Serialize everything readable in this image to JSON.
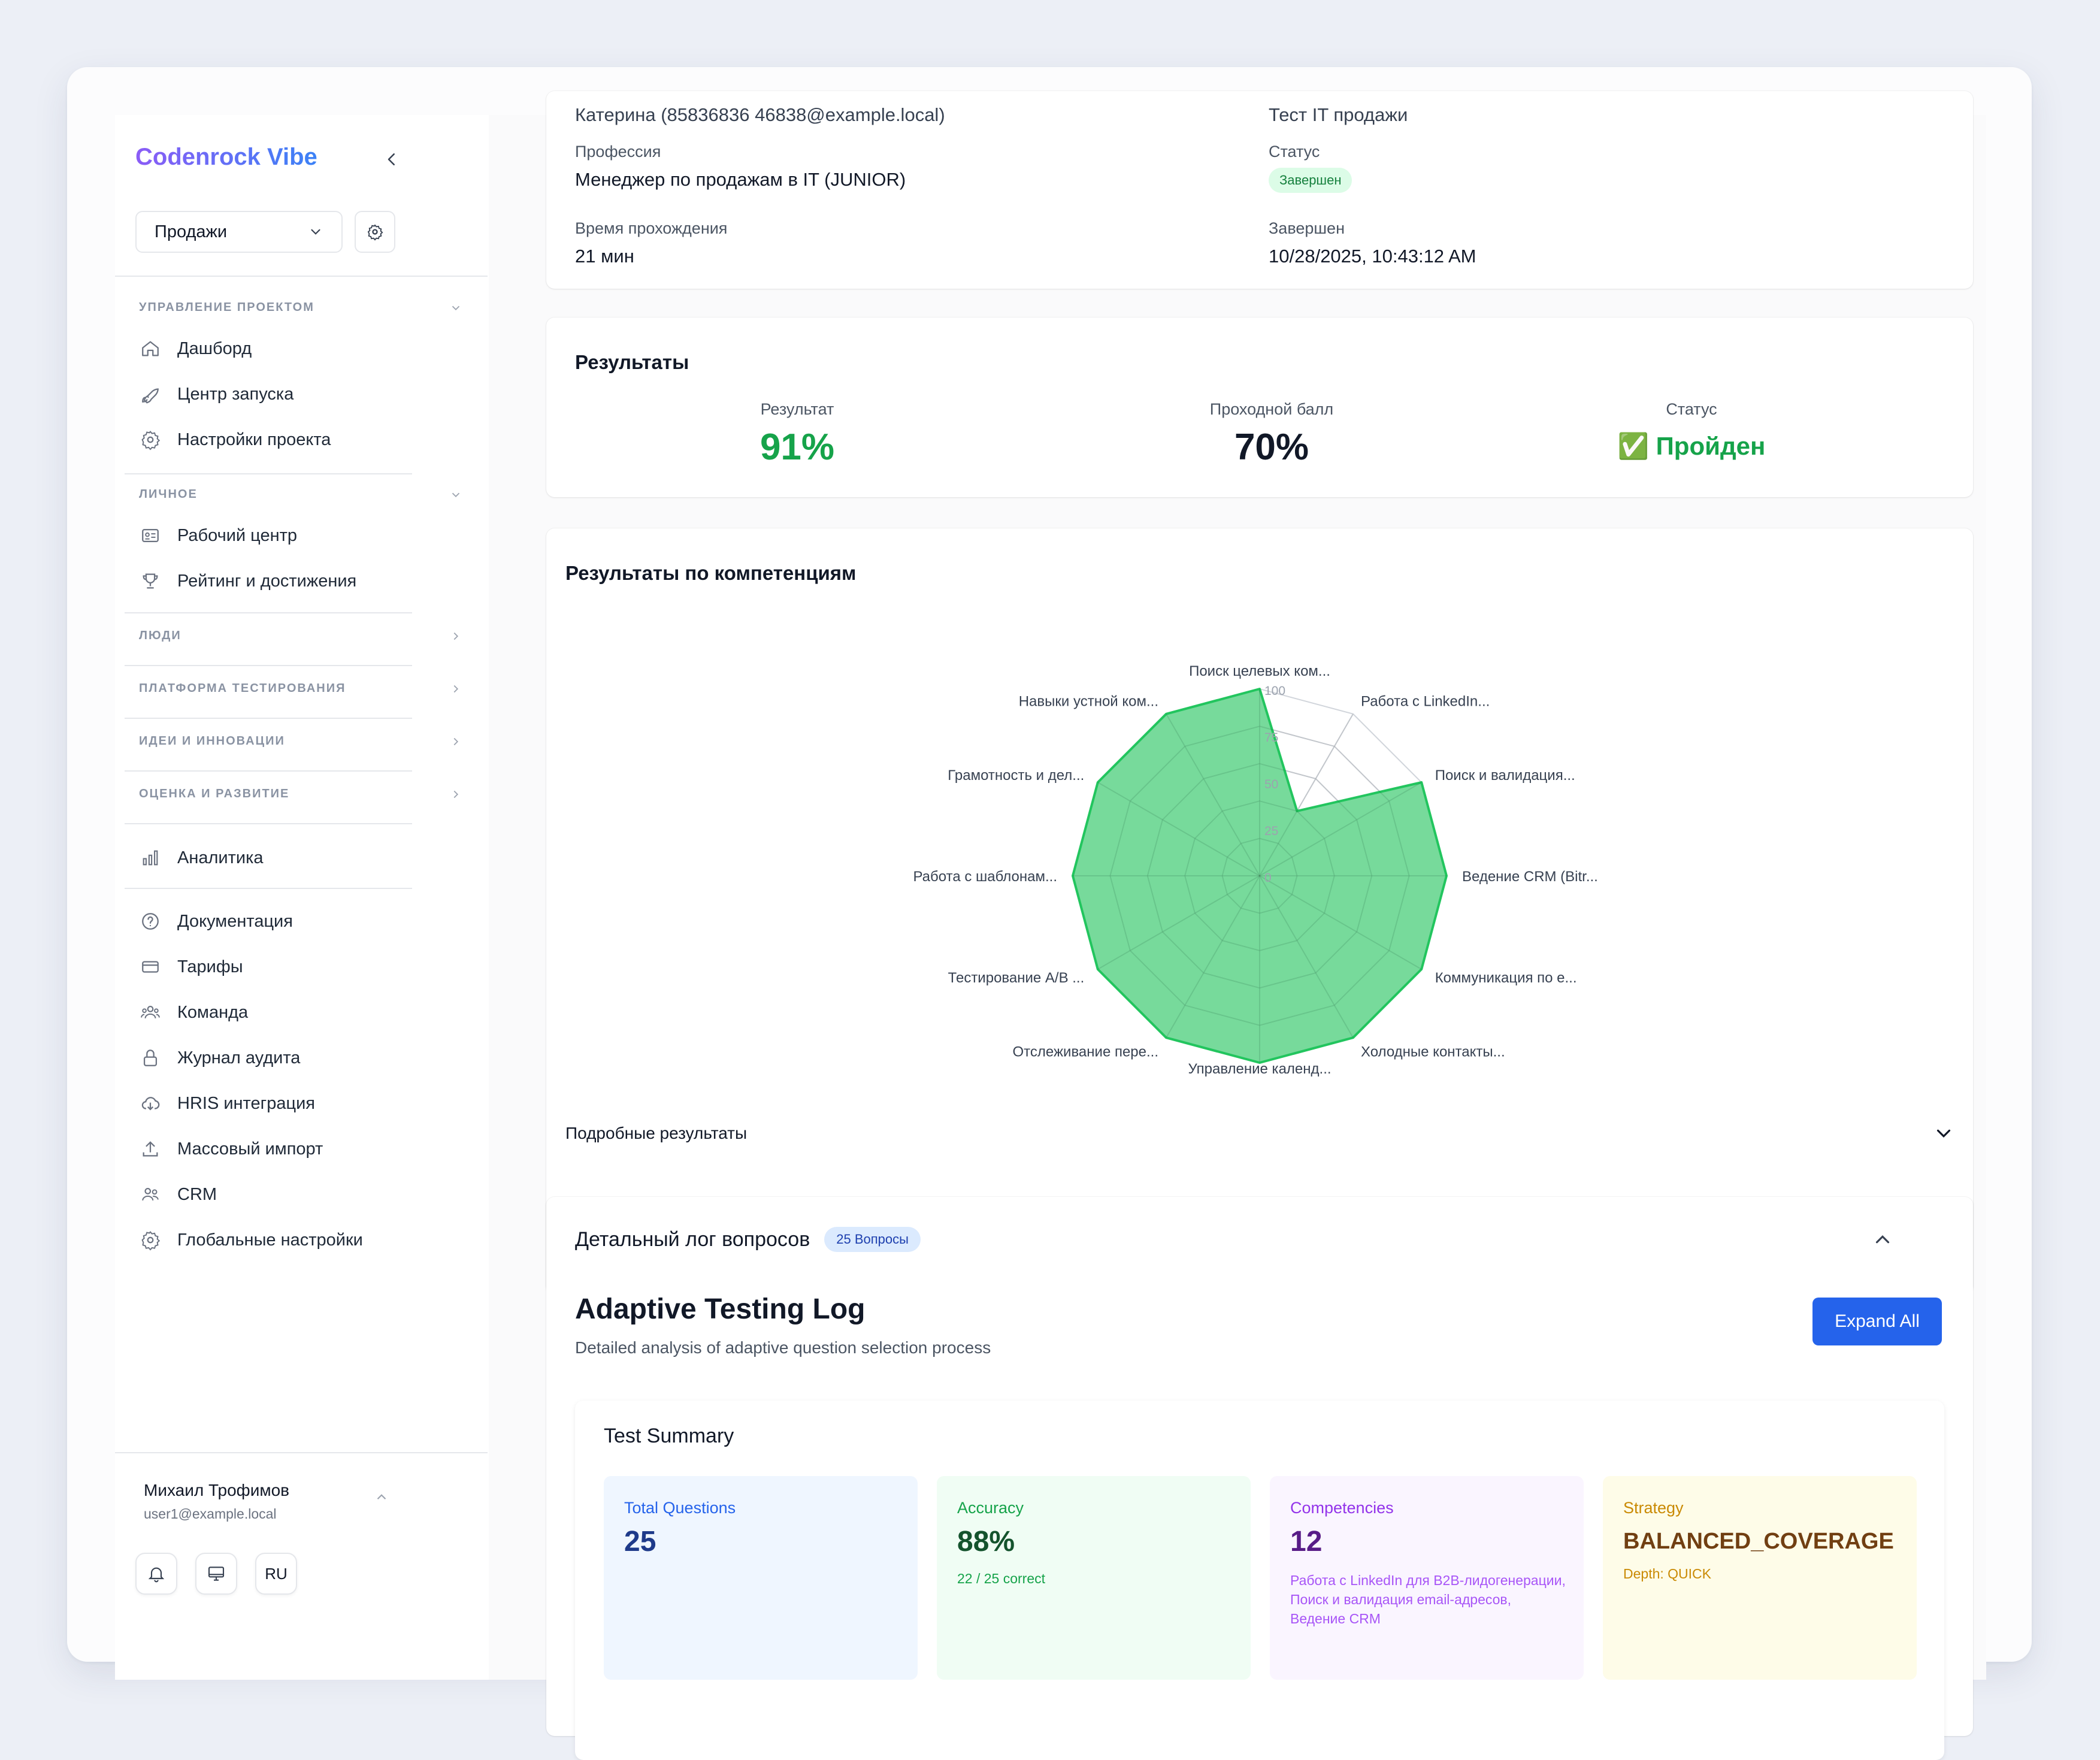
{
  "sidebar": {
    "brand": "Codenrock Vibe",
    "project_select": "Продажи",
    "sections": [
      {
        "header": "Управление проектом",
        "items": [
          "Дашборд",
          "Центр запуска",
          "Настройки проекта"
        ]
      },
      {
        "header": "Личное",
        "items": [
          "Рабочий центр",
          "Рейтинг и достижения"
        ]
      },
      {
        "header": "Люди"
      },
      {
        "header": "Платформа тестирования"
      },
      {
        "header": "Идеи и инновации"
      },
      {
        "header": "Оценка и развитие"
      }
    ],
    "analytics": "Аналитика",
    "bottom_items": [
      "Документация",
      "Тарифы",
      "Команда",
      "Журнал аудита",
      "HRIS интеграция",
      "Массовый импорт",
      "CRM",
      "Глобальные настройки"
    ],
    "user": {
      "name": "Михаил Трофимов",
      "email": "user1@example.local",
      "lang": "RU"
    }
  },
  "info": {
    "top_left_partial": "Катерина (85836836 46838@example.local)",
    "top_right_partial": "Тест IT продажи",
    "profession_label": "Профессия",
    "profession_value": "Менеджер по продажам в IT (JUNIOR)",
    "status_label": "Статус",
    "status_badge": "Завершен",
    "time_label": "Время прохождения",
    "time_value": "21 мин",
    "finished_label": "Завершен",
    "finished_value": "10/28/2025, 10:43:12 AM"
  },
  "results": {
    "title": "Результаты",
    "score_label": "Результат",
    "score_value": "91%",
    "pass_label": "Проходной балл",
    "pass_value": "70%",
    "status_label": "Статус",
    "status_value": "✅ Пройден"
  },
  "competencies": {
    "title": "Результаты по компетенциям",
    "details_label": "Подробные результаты"
  },
  "chart_data": {
    "type": "radar",
    "categories": [
      "Поиск целевых ком...",
      "Работа с LinkedIn...",
      "Поиск и валидация...",
      "Ведение CRM (Bitr...",
      "Коммуникация по е...",
      "Холодные контакты...",
      "Управление календ...",
      "Отслеживание пере...",
      "Тестирование A/B ...",
      "Работа с шаблонам...",
      "Грамотность и дел...",
      "Навыки устной ком..."
    ],
    "series": [
      {
        "values": [
          100,
          40,
          100,
          100,
          100,
          100,
          100,
          100,
          100,
          100,
          100,
          100
        ]
      }
    ],
    "rlim": [
      0,
      100
    ],
    "ticks": [
      "0",
      "25",
      "50",
      "75",
      "100"
    ],
    "colors": {
      "fill": "#5fd38a",
      "stroke": "#22c55e",
      "grid": "#d1d5db"
    }
  },
  "log": {
    "title": "Детальный лог вопросов",
    "badge": "25 Вопросы",
    "heading": "Adaptive Testing Log",
    "subtitle": "Detailed analysis of adaptive question selection process",
    "expand_button": "Expand All",
    "summary_title": "Test Summary",
    "summary": [
      {
        "title": "Total Questions",
        "value": "25",
        "sub": ""
      },
      {
        "title": "Accuracy",
        "value": "88%",
        "sub": "22 / 25 correct"
      },
      {
        "title": "Competencies",
        "value": "12",
        "sub": "Работа с LinkedIn для B2B-лидогенерации, Поиск и валидация email-адресов, Ведение CRM"
      },
      {
        "title": "Strategy",
        "value": "BALANCED_COVERAGE",
        "sub": "Depth: QUICK"
      }
    ]
  }
}
